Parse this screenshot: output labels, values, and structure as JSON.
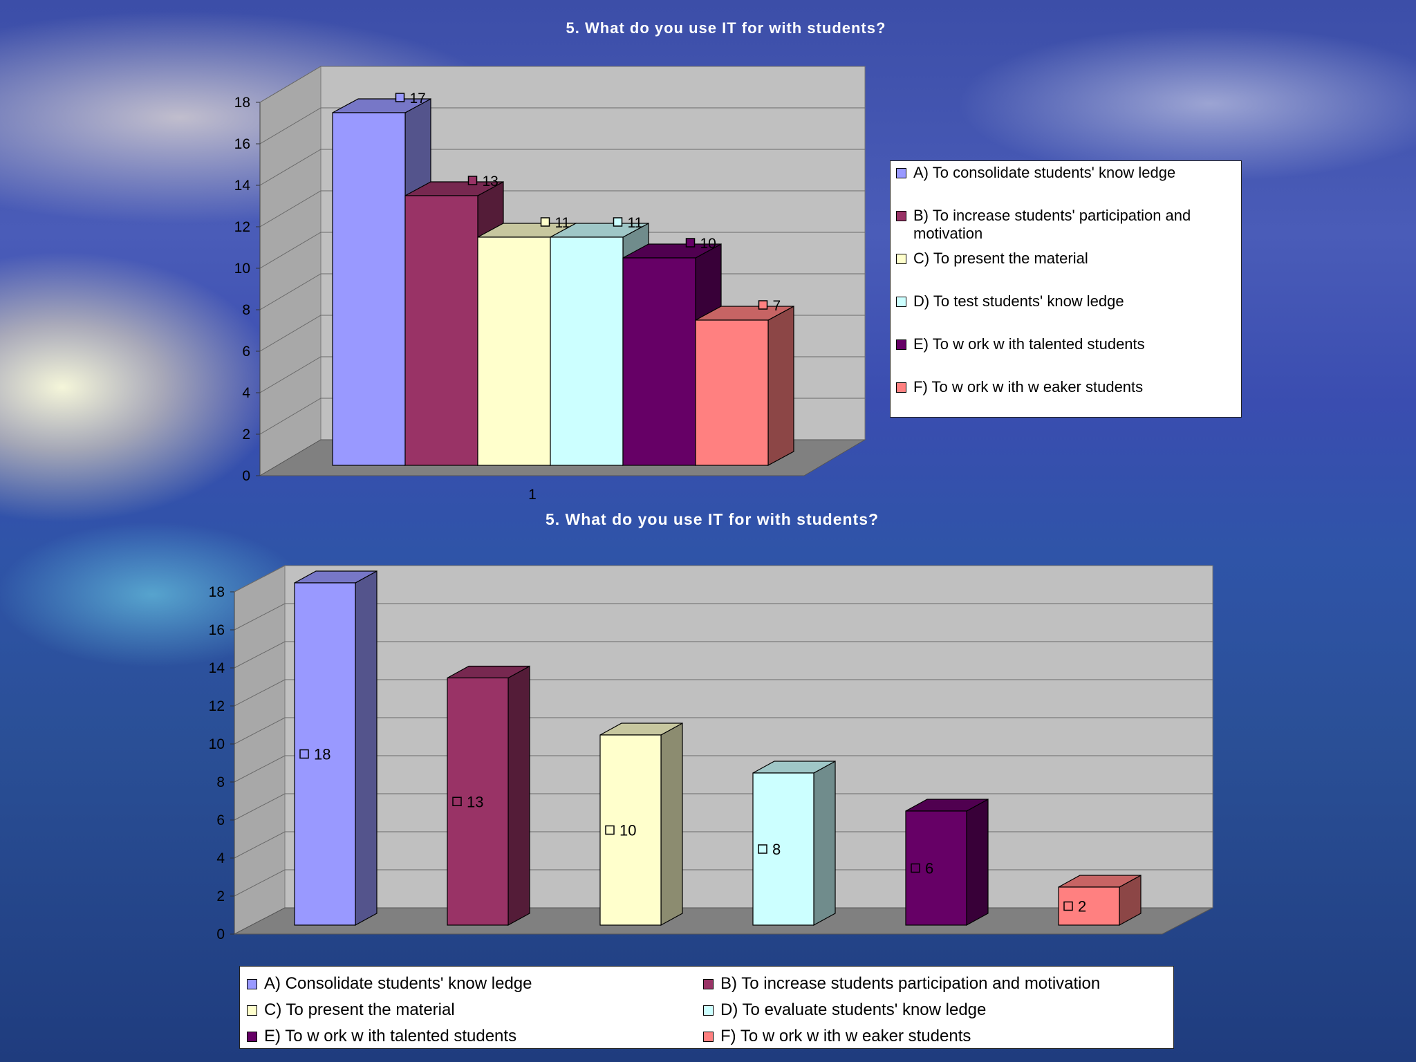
{
  "chart_data": [
    {
      "type": "bar",
      "title": "5. What do you use IT for with students?",
      "categories": [
        "1"
      ],
      "ylim": [
        0,
        18
      ],
      "yticks": [
        0,
        2,
        4,
        6,
        8,
        10,
        12,
        14,
        16,
        18
      ],
      "grid": true,
      "legend_position": "right",
      "series": [
        {
          "name": "A) To consolidate students' know ledge",
          "values": [
            17
          ],
          "color": "#9999ff"
        },
        {
          "name": "B) To increase students' participation and motivation",
          "values": [
            13
          ],
          "color": "#993366"
        },
        {
          "name": "C) To present the material",
          "values": [
            11
          ],
          "color": "#ffffcc"
        },
        {
          "name": "D) To test students' know ledge",
          "values": [
            11
          ],
          "color": "#ccffff"
        },
        {
          "name": "E) To w ork w ith talented students",
          "values": [
            10
          ],
          "color": "#660066"
        },
        {
          "name": "F) To w ork w ith w eaker students",
          "values": [
            7
          ],
          "color": "#ff8080"
        }
      ]
    },
    {
      "type": "bar",
      "title": "5. What do you use IT for with students?",
      "ylim": [
        0,
        18
      ],
      "yticks": [
        0,
        2,
        4,
        6,
        8,
        10,
        12,
        14,
        16,
        18
      ],
      "grid": true,
      "legend_position": "bottom",
      "series": [
        {
          "name": "A) Consolidate students' know ledge",
          "values": [
            18
          ],
          "color": "#9999ff"
        },
        {
          "name": "B) To increase students participation and motivation",
          "values": [
            13
          ],
          "color": "#993366"
        },
        {
          "name": "C) To present the material",
          "values": [
            10
          ],
          "color": "#ffffcc"
        },
        {
          "name": "D) To evaluate students' know ledge",
          "values": [
            8
          ],
          "color": "#ccffff"
        },
        {
          "name": "E) To w ork w ith talented students",
          "values": [
            6
          ],
          "color": "#660066"
        },
        {
          "name": "F) To w ork w ith w eaker students",
          "values": [
            2
          ],
          "color": "#ff8080"
        }
      ]
    }
  ]
}
